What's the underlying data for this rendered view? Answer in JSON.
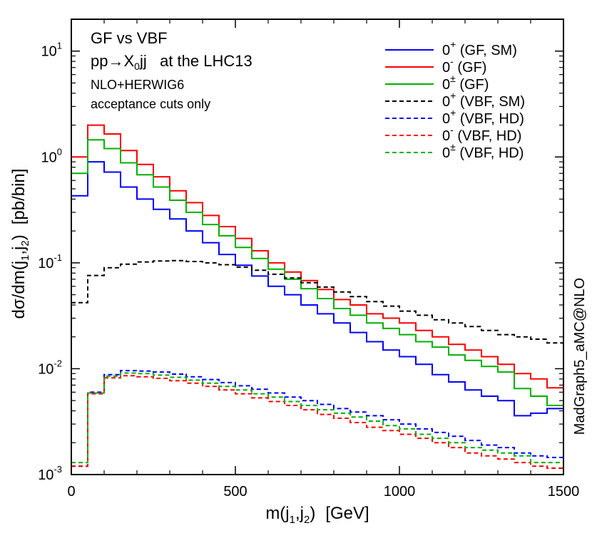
{
  "chart_data": {
    "type": "line",
    "step": true,
    "x_scale": "linear",
    "y_scale": "log",
    "xlim": [
      0,
      1500
    ],
    "ylim": [
      0.001,
      20
    ],
    "bin_width": 50,
    "xlabel": {
      "base": "m(j",
      "sub1": "1",
      "sep": ",j",
      "sub2": "2",
      "close": ")",
      "unit": "[GeV]"
    },
    "ylabel": {
      "base": "dσ/dm(j",
      "sub1": "1",
      "sep": ",j",
      "sub2": "2",
      "close": ")",
      "unit": "[pb/bin]"
    },
    "x_ticks": [
      {
        "value": 0,
        "label": "0"
      },
      {
        "value": 500,
        "label": "500"
      },
      {
        "value": 1000,
        "label": "1000"
      },
      {
        "value": 1500,
        "label": "1500"
      }
    ],
    "y_ticks": [
      {
        "value": 0.001,
        "base": "10",
        "exp": "-3"
      },
      {
        "value": 0.01,
        "base": "10",
        "exp": "-2"
      },
      {
        "value": 0.1,
        "base": "10",
        "exp": "-1"
      },
      {
        "value": 1,
        "base": "10",
        "exp": "0"
      },
      {
        "value": 10,
        "base": "10",
        "exp": "1"
      }
    ],
    "annotations": {
      "line1": "GF vs VBF",
      "line2": {
        "pre": "pp",
        "arrow": "→",
        "x": "X",
        "sub": "0",
        "post": "jj   at the LHC13"
      },
      "line3": "NLO+HERWIG6",
      "line4": "acceptance cuts only",
      "side": "MadGraph5_aMC@NLO"
    },
    "legend_position": "top-right",
    "series": [
      {
        "id": "gf-sm",
        "sup": "+",
        "label": " (GF, SM)",
        "color": "#0000ff",
        "dash": false,
        "values": [
          0.43,
          0.9,
          0.72,
          0.52,
          0.4,
          0.32,
          0.26,
          0.2,
          0.155,
          0.12,
          0.095,
          0.075,
          0.06,
          0.05,
          0.04,
          0.033,
          0.027,
          0.022,
          0.018,
          0.015,
          0.013,
          0.011,
          0.0088,
          0.0075,
          0.0063,
          0.0055,
          0.005,
          0.0036,
          0.0038,
          0.0042
        ]
      },
      {
        "id": "gf-minus",
        "sup": "-",
        "label": " (GF)",
        "color": "#ff0000",
        "dash": false,
        "values": [
          1.0,
          2.0,
          1.65,
          1.15,
          0.85,
          0.65,
          0.48,
          0.37,
          0.28,
          0.22,
          0.17,
          0.13,
          0.1,
          0.082,
          0.068,
          0.056,
          0.045,
          0.04,
          0.033,
          0.03,
          0.027,
          0.023,
          0.02,
          0.017,
          0.015,
          0.013,
          0.011,
          0.009,
          0.008,
          0.0066
        ]
      },
      {
        "id": "gf-pm",
        "sup": "±",
        "label": " (GF)",
        "color": "#00b000",
        "dash": false,
        "values": [
          0.7,
          1.45,
          1.2,
          0.88,
          0.68,
          0.52,
          0.39,
          0.3,
          0.23,
          0.18,
          0.14,
          0.11,
          0.087,
          0.07,
          0.057,
          0.046,
          0.037,
          0.032,
          0.027,
          0.024,
          0.021,
          0.018,
          0.016,
          0.0135,
          0.012,
          0.0105,
          0.0093,
          0.0065,
          0.0055,
          0.0045
        ]
      },
      {
        "id": "vbf-sm",
        "sup": "+",
        "label": " (VBF, SM)",
        "color": "#000000",
        "dash": true,
        "values": [
          0.042,
          0.076,
          0.09,
          0.097,
          0.102,
          0.104,
          0.105,
          0.103,
          0.1,
          0.096,
          0.091,
          0.085,
          0.078,
          0.072,
          0.065,
          0.059,
          0.053,
          0.048,
          0.043,
          0.039,
          0.035,
          0.032,
          0.029,
          0.027,
          0.025,
          0.023,
          0.021,
          0.02,
          0.019,
          0.0175
        ]
      },
      {
        "id": "vbf-hd-plus",
        "sup": "+",
        "label": " (VBF, HD)",
        "color": "#0000ff",
        "dash": true,
        "values": [
          0.0012,
          0.006,
          0.0088,
          0.0096,
          0.0095,
          0.0093,
          0.0089,
          0.0084,
          0.0079,
          0.0074,
          0.0069,
          0.0064,
          0.0059,
          0.0054,
          0.005,
          0.0046,
          0.0042,
          0.0039,
          0.0036,
          0.0033,
          0.003,
          0.0027,
          0.0025,
          0.0023,
          0.0021,
          0.0019,
          0.0018,
          0.0016,
          0.0015,
          0.00145
        ]
      },
      {
        "id": "vbf-hd-minus",
        "sup": "-",
        "label": " (VBF, HD)",
        "color": "#ff0000",
        "dash": true,
        "values": [
          0.0012,
          0.0058,
          0.0082,
          0.0086,
          0.0084,
          0.0081,
          0.0077,
          0.0073,
          0.0068,
          0.0063,
          0.0058,
          0.0053,
          0.0049,
          0.0045,
          0.0041,
          0.0037,
          0.0034,
          0.0031,
          0.0028,
          0.0026,
          0.0024,
          0.0022,
          0.002,
          0.0018,
          0.0016,
          0.0015,
          0.0014,
          0.0013,
          0.0012,
          0.00115
        ]
      },
      {
        "id": "vbf-hd-pm",
        "sup": "±",
        "label": " (VBF, HD)",
        "color": "#00b000",
        "dash": true,
        "values": [
          0.0013,
          0.0059,
          0.0085,
          0.0091,
          0.009,
          0.0087,
          0.0083,
          0.0078,
          0.0073,
          0.0068,
          0.0063,
          0.0058,
          0.0054,
          0.0049,
          0.0045,
          0.0041,
          0.0038,
          0.0035,
          0.0032,
          0.0029,
          0.0027,
          0.0024,
          0.0022,
          0.002,
          0.0018,
          0.0017,
          0.0016,
          0.0015,
          0.0013,
          0.0013
        ]
      }
    ]
  }
}
